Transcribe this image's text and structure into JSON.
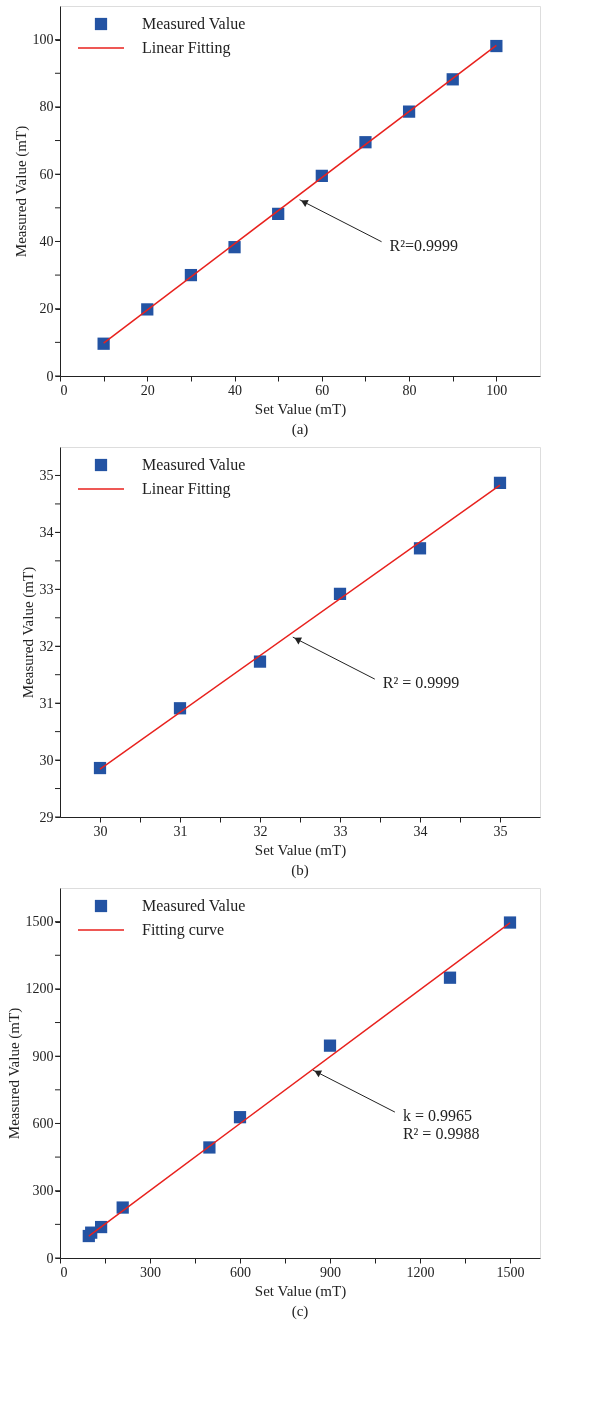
{
  "chart_data": [
    {
      "type": "scatter",
      "title": "(a)",
      "xlabel": "Set Value (mT)",
      "ylabel": "Measured Value (mT)",
      "xlim": [
        0,
        110
      ],
      "ylim": [
        0,
        110
      ],
      "xticks": [
        0,
        {
          "value": 10,
          "label": null
        },
        20,
        {
          "value": 30,
          "label": null
        },
        40,
        {
          "value": 50,
          "label": null
        },
        60,
        {
          "value": 70,
          "label": null
        },
        80,
        {
          "value": 90,
          "label": null
        },
        100
      ],
      "yticks": [
        0,
        {
          "value": 10,
          "label": null
        },
        20,
        {
          "value": 30,
          "label": null
        },
        40,
        {
          "value": 50,
          "label": null
        },
        60,
        {
          "value": 70,
          "label": null
        },
        80,
        {
          "value": 90,
          "label": null
        },
        100
      ],
      "x": [
        10,
        20,
        30,
        40,
        50,
        60,
        70,
        80,
        90,
        100
      ],
      "series": [
        {
          "name": "Measured Value",
          "color": "#2353a3",
          "marker": "square",
          "values": [
            9.6,
            19.8,
            30.0,
            38.3,
            48.2,
            59.5,
            69.5,
            78.6,
            88.2,
            98.1
          ]
        },
        {
          "name": "Linear Fitting",
          "type": "line",
          "color": "#e8211d",
          "x": [
            10,
            100
          ],
          "values": [
            9.8,
            98.3
          ]
        }
      ],
      "annotations": [
        {
          "text": "R²=0.9999",
          "x": 54.9,
          "y": 52.4
        }
      ],
      "legend": "top left",
      "grid": false
    },
    {
      "type": "scatter",
      "title": "(b)",
      "xlabel": "Set Value (mT)",
      "ylabel": "Measured Value (mT)",
      "xlim": [
        29.5,
        35.5
      ],
      "ylim": [
        29,
        35.5
      ],
      "xticks": [
        30,
        {
          "value": 30.5,
          "label": null
        },
        31,
        {
          "value": 31.5,
          "label": null
        },
        32,
        {
          "value": 32.5,
          "label": null
        },
        33,
        {
          "value": 33.5,
          "label": null
        },
        34,
        {
          "value": 34.5,
          "label": null
        },
        35
      ],
      "yticks": [
        29,
        {
          "value": 29.5,
          "label": null
        },
        30,
        {
          "value": 30.5,
          "label": null
        },
        31,
        {
          "value": 31.5,
          "label": null
        },
        32,
        {
          "value": 32.5,
          "label": null
        },
        33,
        {
          "value": 33.5,
          "label": null
        },
        34,
        {
          "value": 34.5,
          "label": null
        },
        35
      ],
      "x": [
        30,
        31,
        32,
        33,
        34,
        35
      ],
      "series": [
        {
          "name": "Measured Value",
          "color": "#2353a3",
          "marker": "square",
          "values": [
            29.86,
            30.91,
            31.73,
            32.92,
            33.72,
            34.87
          ]
        },
        {
          "name": "Linear Fitting",
          "type": "line",
          "color": "#e8211d",
          "x": [
            30,
            35
          ],
          "values": [
            29.84,
            34.83
          ]
        }
      ],
      "annotations": [
        {
          "text": "R² = 0.9999",
          "x": 32.41,
          "y": 32.16
        }
      ],
      "legend": "top left",
      "grid": false
    },
    {
      "type": "scatter",
      "title": "(c)",
      "xlabel": "Set Value (mT)",
      "ylabel": "Measured Value (mT)",
      "xlim": [
        0,
        1600
      ],
      "ylim": [
        0,
        1650
      ],
      "xticks": [
        0,
        {
          "value": 150,
          "label": null
        },
        300,
        {
          "value": 450,
          "label": null
        },
        600,
        {
          "value": 750,
          "label": null
        },
        900,
        {
          "value": 1050,
          "label": null
        },
        1200,
        {
          "value": 1350,
          "label": null
        },
        1500
      ],
      "yticks": [
        0,
        {
          "value": 150,
          "label": null
        },
        300,
        {
          "value": 450,
          "label": null
        },
        600,
        {
          "value": 750,
          "label": null
        },
        900,
        {
          "value": 1050,
          "label": null
        },
        1200,
        {
          "value": 1350,
          "label": null
        },
        1500
      ],
      "x": [
        96,
        104,
        137,
        209,
        498,
        600,
        900,
        1300,
        1500
      ],
      "series": [
        {
          "name": "Measured Value",
          "color": "#2353a3",
          "marker": "square",
          "values": [
            98,
            113,
            138,
            225,
            493,
            628,
            947,
            1250,
            1496
          ]
        },
        {
          "name": "Fitting curve",
          "type": "line",
          "color": "#e8211d",
          "x": [
            96,
            1500
          ],
          "values": [
            98,
            1495
          ]
        }
      ],
      "annotations": [
        {
          "text": "k = 0.9965\nR² = 0.9988",
          "x": 843,
          "y": 838
        }
      ],
      "legend": "top left",
      "grid": false
    }
  ]
}
